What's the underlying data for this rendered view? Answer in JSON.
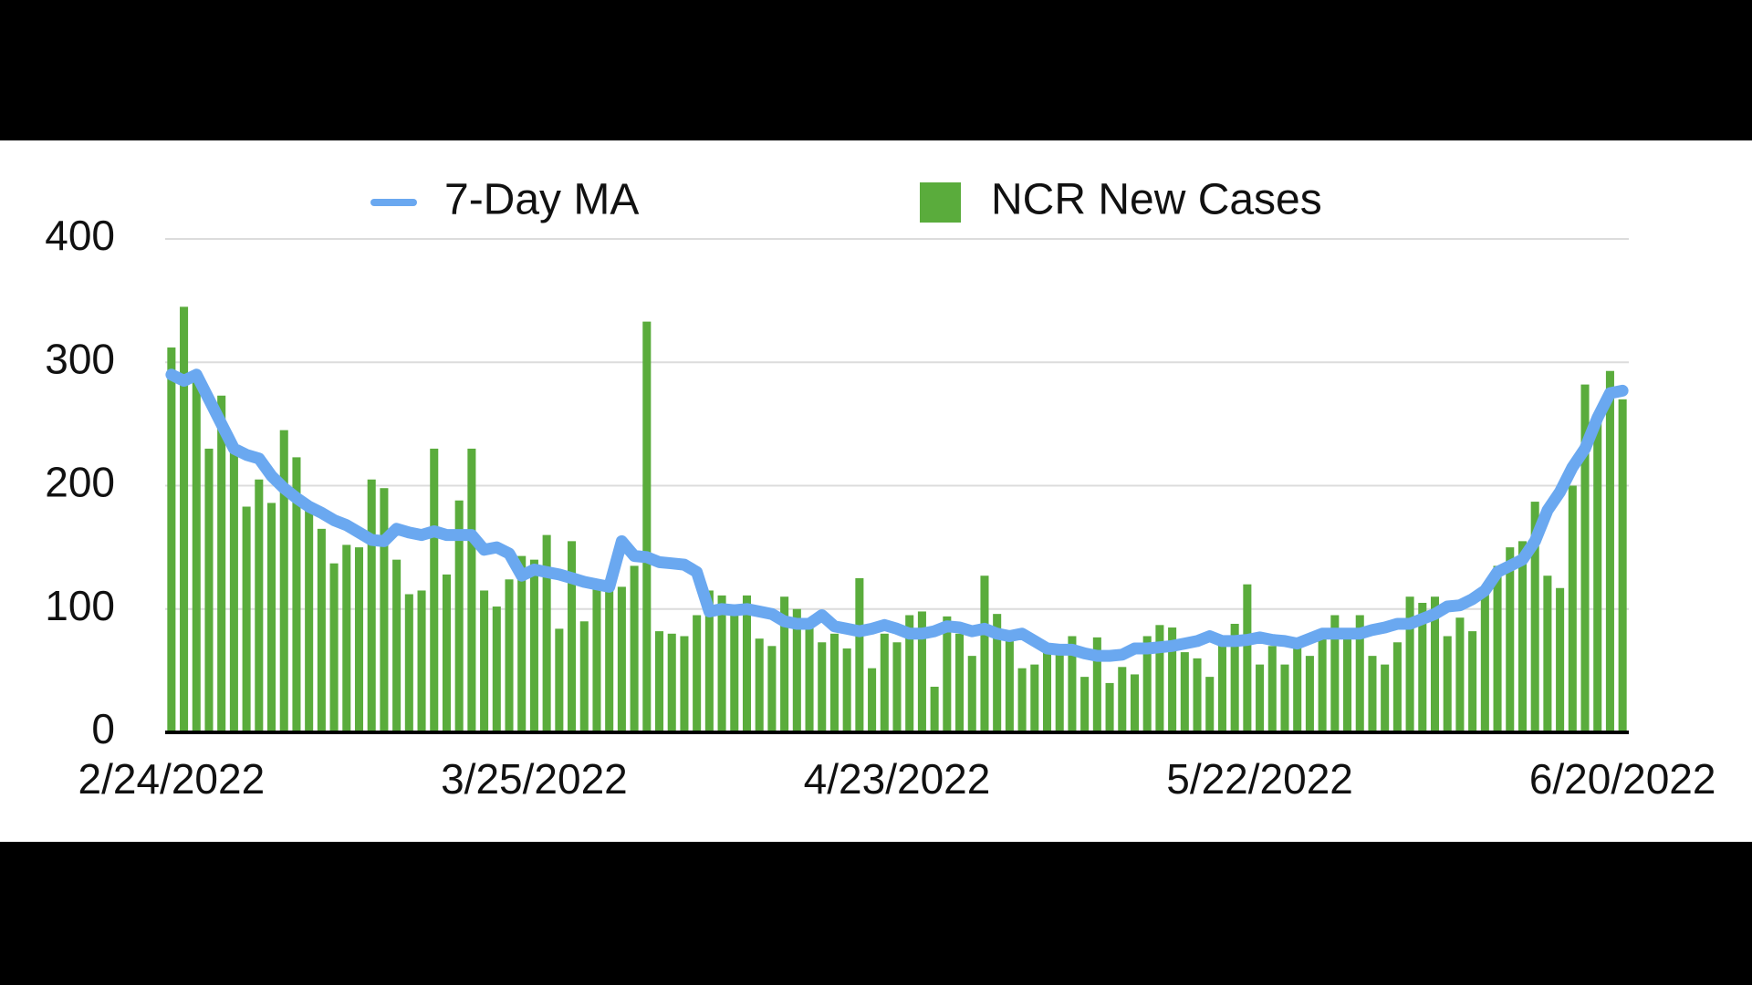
{
  "chart_data": {
    "type": "bar",
    "categories": [
      "2/24/2022",
      null,
      null,
      null,
      null,
      null,
      null,
      null,
      null,
      null,
      null,
      null,
      null,
      null,
      null,
      null,
      null,
      null,
      null,
      null,
      null,
      null,
      null,
      null,
      null,
      null,
      null,
      null,
      null,
      "3/25/2022",
      null,
      null,
      null,
      null,
      null,
      null,
      null,
      null,
      null,
      null,
      null,
      null,
      null,
      null,
      null,
      null,
      null,
      null,
      null,
      null,
      null,
      null,
      null,
      null,
      null,
      null,
      null,
      null,
      "4/23/2022",
      null,
      null,
      null,
      null,
      null,
      null,
      null,
      null,
      null,
      null,
      null,
      null,
      null,
      null,
      null,
      null,
      null,
      null,
      null,
      null,
      null,
      null,
      null,
      null,
      null,
      null,
      null,
      null,
      "5/22/2022",
      null,
      null,
      null,
      null,
      null,
      null,
      null,
      null,
      null,
      null,
      null,
      null,
      null,
      null,
      null,
      null,
      null,
      null,
      null,
      null,
      null,
      null,
      null,
      null,
      null,
      null,
      null,
      null,
      "6/20/2022"
    ],
    "series": [
      {
        "name": "7-Day MA",
        "type": "line",
        "color": "#6aa8f0",
        "values": [
          290,
          285,
          290,
          270,
          250,
          230,
          225,
          222,
          208,
          198,
          190,
          183,
          178,
          172,
          168,
          162,
          156,
          155,
          165,
          162,
          160,
          163,
          160,
          160,
          160,
          148,
          150,
          145,
          127,
          132,
          130,
          128,
          125,
          122,
          120,
          118,
          155,
          143,
          142,
          138,
          137,
          136,
          130,
          98,
          100,
          99,
          100,
          98,
          96,
          90,
          88,
          88,
          95,
          86,
          84,
          82,
          84,
          87,
          84,
          80,
          80,
          82,
          86,
          85,
          82,
          84,
          80,
          78,
          80,
          74,
          68,
          67,
          67,
          64,
          62,
          62,
          63,
          68,
          68,
          69,
          70,
          72,
          74,
          78,
          74,
          74,
          75,
          77,
          75,
          74,
          72,
          76,
          80,
          80,
          80,
          80,
          83,
          85,
          88,
          88,
          92,
          96,
          102,
          103,
          108,
          115,
          130,
          135,
          140,
          155,
          180,
          195,
          215,
          230,
          255,
          275,
          277
        ]
      },
      {
        "name": "NCR New Cases",
        "type": "bar",
        "color": "#5aac3c",
        "values": [
          312,
          345,
          285,
          230,
          273,
          230,
          183,
          205,
          186,
          245,
          223,
          180,
          165,
          137,
          152,
          150,
          205,
          198,
          140,
          112,
          115,
          230,
          128,
          188,
          230,
          115,
          102,
          124,
          143,
          140,
          160,
          84,
          155,
          90,
          120,
          118,
          118,
          135,
          333,
          82,
          80,
          78,
          95,
          115,
          111,
          100,
          111,
          76,
          70,
          110,
          100,
          85,
          73,
          80,
          68,
          125,
          52,
          80,
          73,
          95,
          98,
          37,
          94,
          80,
          62,
          127,
          96,
          80,
          52,
          55,
          65,
          65,
          78,
          45,
          77,
          40,
          53,
          47,
          78,
          87,
          85,
          65,
          60,
          45,
          77,
          88,
          120,
          55,
          70,
          55,
          70,
          62,
          78,
          95,
          78,
          95,
          62,
          55,
          73,
          110,
          105,
          110,
          78,
          93,
          82,
          115,
          135,
          150,
          155,
          187,
          127,
          117,
          200,
          282,
          255,
          293,
          270
        ]
      }
    ],
    "ylim": [
      0,
      400
    ],
    "yticks": [
      0,
      100,
      200,
      300,
      400
    ],
    "grid": true
  }
}
